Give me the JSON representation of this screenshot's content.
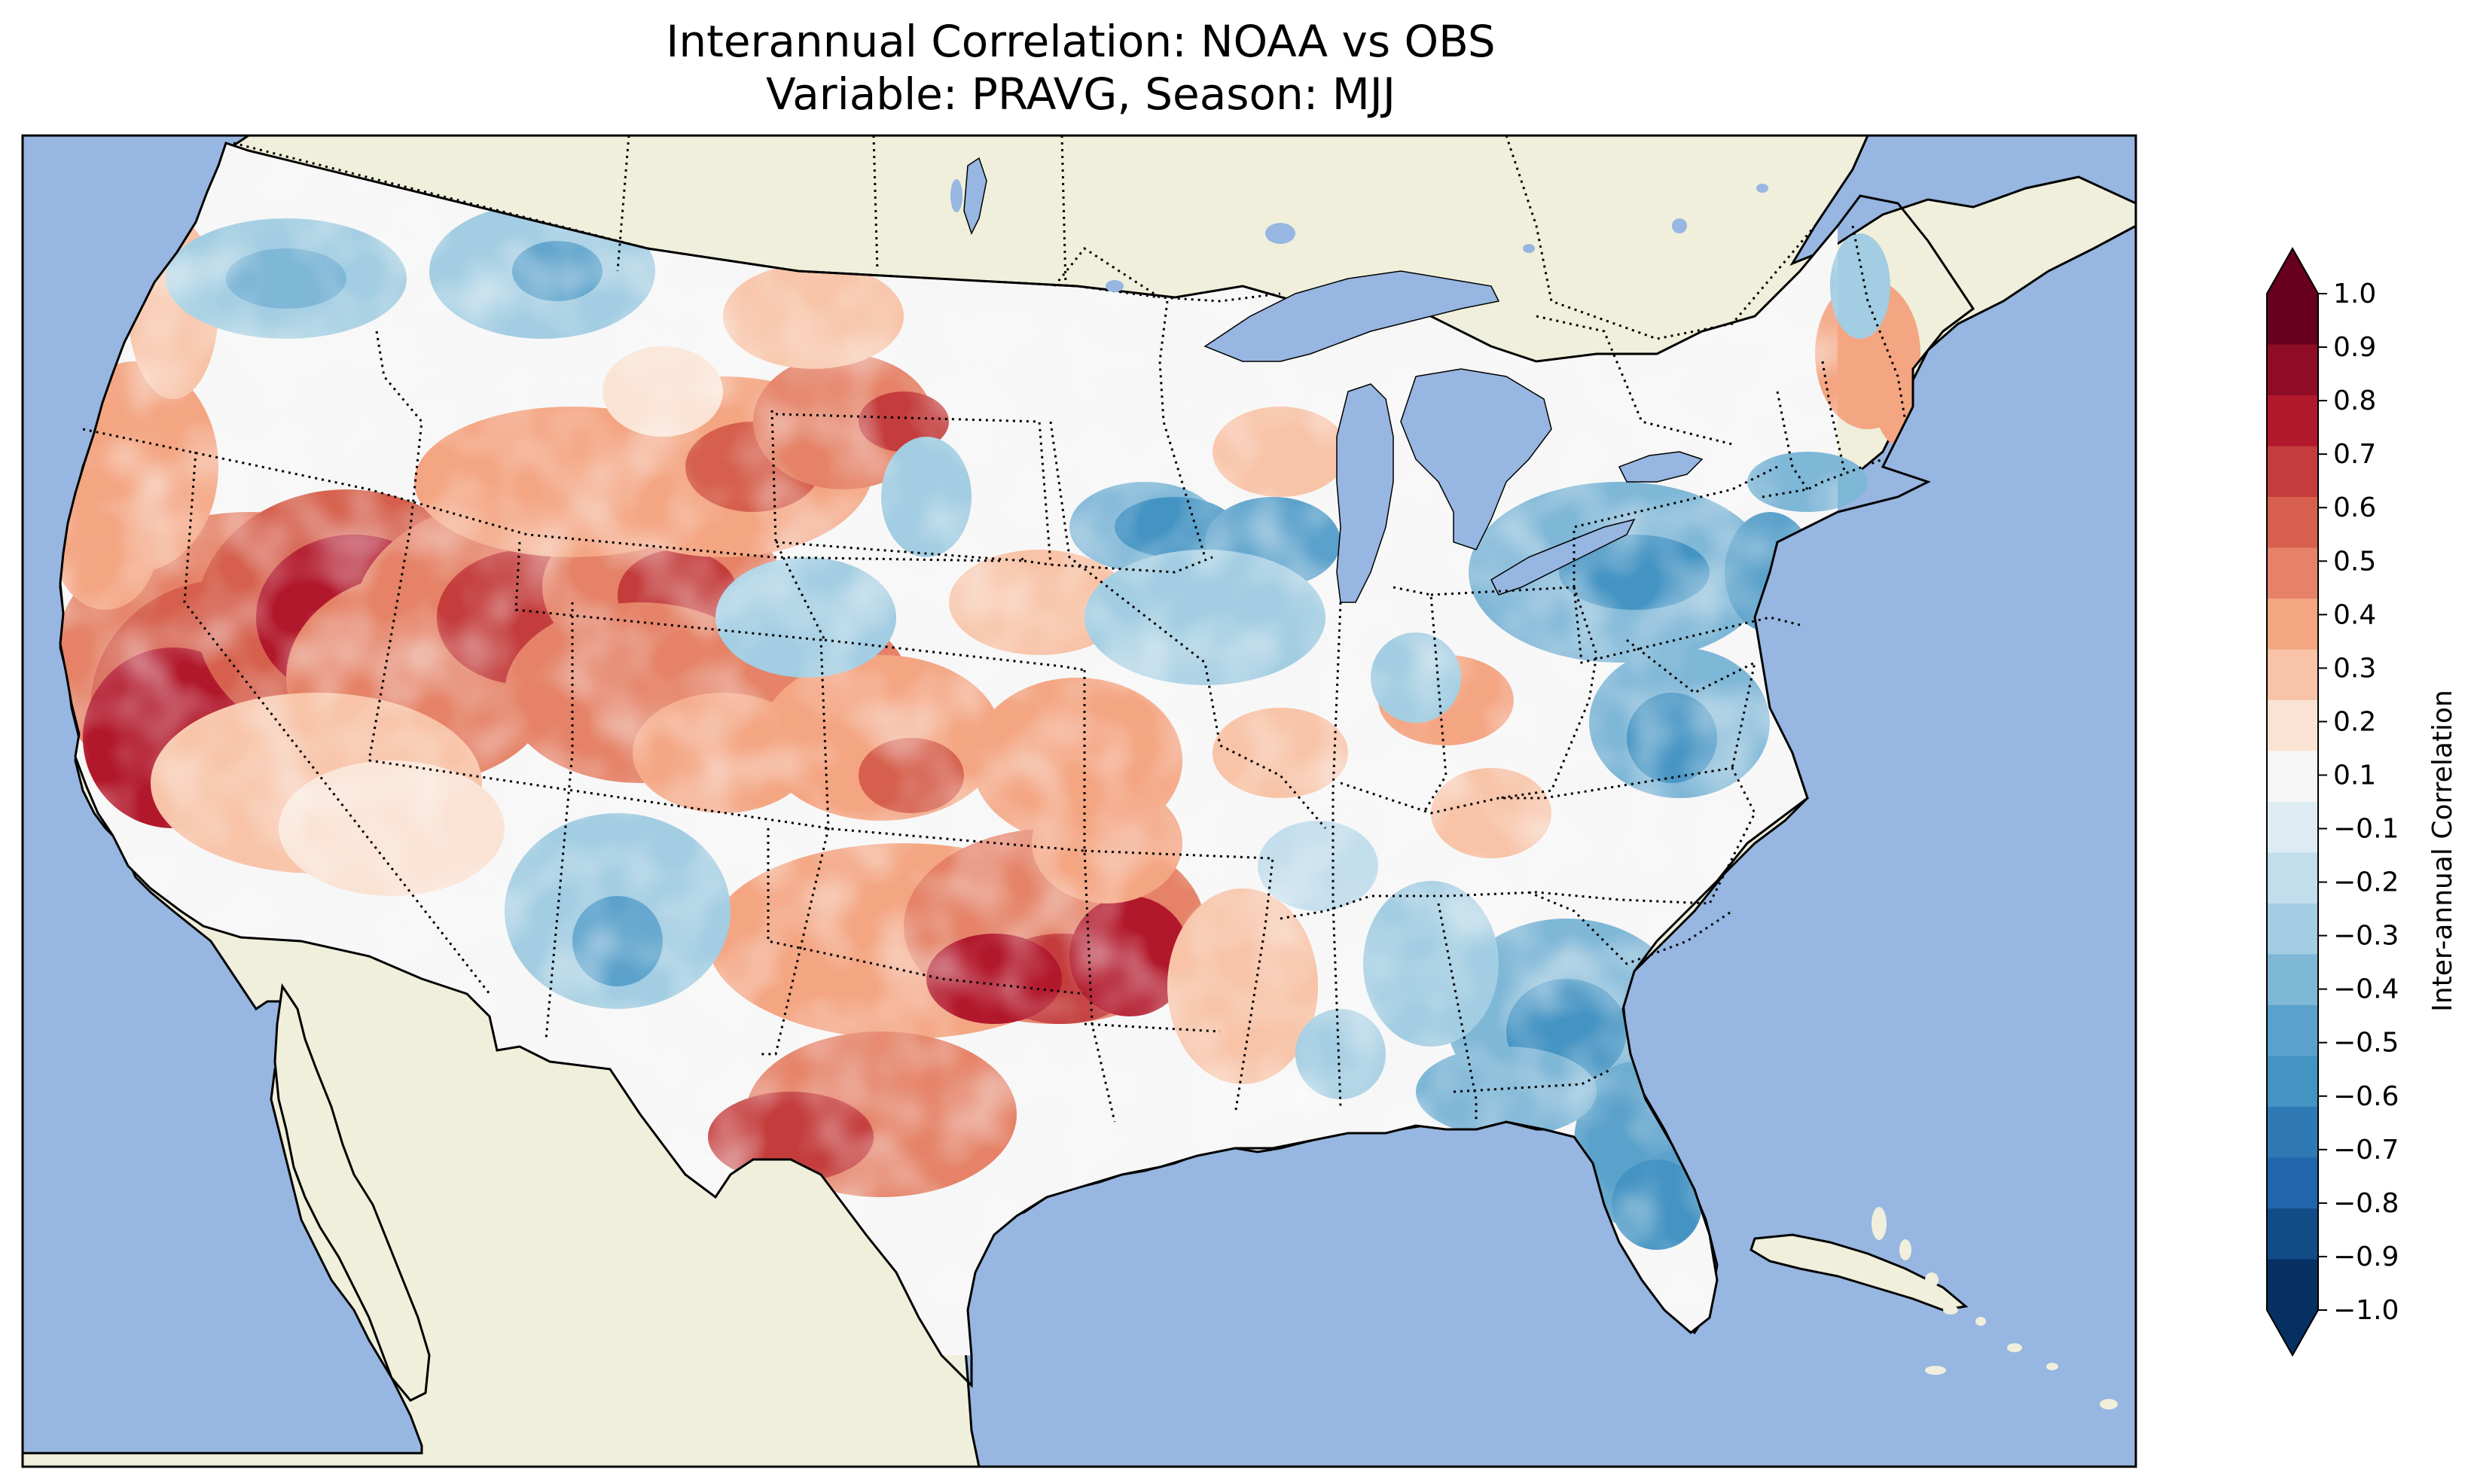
{
  "title_line1": "Interannual Correlation: NOAA vs OBS",
  "title_line2": "Variable: PRAVG, Season: MJJ",
  "colorbar": {
    "label": "Inter-annual Correlation",
    "tick_labels": [
      "1.0",
      "0.9",
      "0.8",
      "0.7",
      "0.6",
      "0.5",
      "0.4",
      "0.3",
      "0.2",
      "0.1",
      "−0.1",
      "−0.2",
      "−0.3",
      "−0.4",
      "−0.5",
      "−0.6",
      "−0.7",
      "−0.8",
      "−0.9",
      "−1.0"
    ],
    "colors_top_to_bottom": [
      "#67001f",
      "#8e0c25",
      "#b2182b",
      "#c43c3c",
      "#d6604d",
      "#e58267",
      "#f4a582",
      "#f8c3a7",
      "#fbe3d4",
      "#f7f7f7",
      "#deebf2",
      "#c2ddec",
      "#a2cde2",
      "#7fb7d7",
      "#5aa1cb",
      "#4393c3",
      "#2f79b5",
      "#2166ac",
      "#134b87",
      "#053061"
    ],
    "extend": "both"
  },
  "map_colors": {
    "ocean": "#97b6e1",
    "land": "#efefdb",
    "lakes": "#97b6e1"
  }
}
